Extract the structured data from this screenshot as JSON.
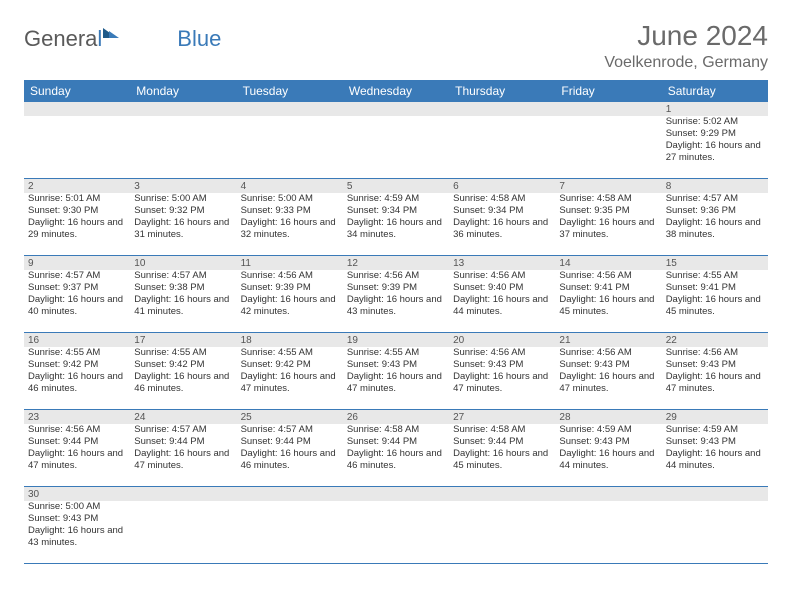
{
  "logo": {
    "text_gray": "Genera",
    "text_blue_l": "l",
    "text_blue_rest": "Blue"
  },
  "header": {
    "title": "June 2024",
    "location": "Voelkenrode, Germany"
  },
  "colors": {
    "header_bg": "#3a7ab8",
    "header_text": "#ffffff",
    "daynum_bg": "#e8e8e8",
    "text": "#333333",
    "title_text": "#6a6a6a",
    "row_border": "#3a7ab8"
  },
  "day_headers": [
    "Sunday",
    "Monday",
    "Tuesday",
    "Wednesday",
    "Thursday",
    "Friday",
    "Saturday"
  ],
  "weeks": [
    {
      "daynums": [
        "",
        "",
        "",
        "",
        "",
        "",
        "1"
      ],
      "cells": [
        null,
        null,
        null,
        null,
        null,
        null,
        {
          "sunrise": "5:02 AM",
          "sunset": "9:29 PM",
          "daylight": "16 hours and 27 minutes."
        }
      ]
    },
    {
      "daynums": [
        "2",
        "3",
        "4",
        "5",
        "6",
        "7",
        "8"
      ],
      "cells": [
        {
          "sunrise": "5:01 AM",
          "sunset": "9:30 PM",
          "daylight": "16 hours and 29 minutes."
        },
        {
          "sunrise": "5:00 AM",
          "sunset": "9:32 PM",
          "daylight": "16 hours and 31 minutes."
        },
        {
          "sunrise": "5:00 AM",
          "sunset": "9:33 PM",
          "daylight": "16 hours and 32 minutes."
        },
        {
          "sunrise": "4:59 AM",
          "sunset": "9:34 PM",
          "daylight": "16 hours and 34 minutes."
        },
        {
          "sunrise": "4:58 AM",
          "sunset": "9:34 PM",
          "daylight": "16 hours and 36 minutes."
        },
        {
          "sunrise": "4:58 AM",
          "sunset": "9:35 PM",
          "daylight": "16 hours and 37 minutes."
        },
        {
          "sunrise": "4:57 AM",
          "sunset": "9:36 PM",
          "daylight": "16 hours and 38 minutes."
        }
      ]
    },
    {
      "daynums": [
        "9",
        "10",
        "11",
        "12",
        "13",
        "14",
        "15"
      ],
      "cells": [
        {
          "sunrise": "4:57 AM",
          "sunset": "9:37 PM",
          "daylight": "16 hours and 40 minutes."
        },
        {
          "sunrise": "4:57 AM",
          "sunset": "9:38 PM",
          "daylight": "16 hours and 41 minutes."
        },
        {
          "sunrise": "4:56 AM",
          "sunset": "9:39 PM",
          "daylight": "16 hours and 42 minutes."
        },
        {
          "sunrise": "4:56 AM",
          "sunset": "9:39 PM",
          "daylight": "16 hours and 43 minutes."
        },
        {
          "sunrise": "4:56 AM",
          "sunset": "9:40 PM",
          "daylight": "16 hours and 44 minutes."
        },
        {
          "sunrise": "4:56 AM",
          "sunset": "9:41 PM",
          "daylight": "16 hours and 45 minutes."
        },
        {
          "sunrise": "4:55 AM",
          "sunset": "9:41 PM",
          "daylight": "16 hours and 45 minutes."
        }
      ]
    },
    {
      "daynums": [
        "16",
        "17",
        "18",
        "19",
        "20",
        "21",
        "22"
      ],
      "cells": [
        {
          "sunrise": "4:55 AM",
          "sunset": "9:42 PM",
          "daylight": "16 hours and 46 minutes."
        },
        {
          "sunrise": "4:55 AM",
          "sunset": "9:42 PM",
          "daylight": "16 hours and 46 minutes."
        },
        {
          "sunrise": "4:55 AM",
          "sunset": "9:42 PM",
          "daylight": "16 hours and 47 minutes."
        },
        {
          "sunrise": "4:55 AM",
          "sunset": "9:43 PM",
          "daylight": "16 hours and 47 minutes."
        },
        {
          "sunrise": "4:56 AM",
          "sunset": "9:43 PM",
          "daylight": "16 hours and 47 minutes."
        },
        {
          "sunrise": "4:56 AM",
          "sunset": "9:43 PM",
          "daylight": "16 hours and 47 minutes."
        },
        {
          "sunrise": "4:56 AM",
          "sunset": "9:43 PM",
          "daylight": "16 hours and 47 minutes."
        }
      ]
    },
    {
      "daynums": [
        "23",
        "24",
        "25",
        "26",
        "27",
        "28",
        "29"
      ],
      "cells": [
        {
          "sunrise": "4:56 AM",
          "sunset": "9:44 PM",
          "daylight": "16 hours and 47 minutes."
        },
        {
          "sunrise": "4:57 AM",
          "sunset": "9:44 PM",
          "daylight": "16 hours and 47 minutes."
        },
        {
          "sunrise": "4:57 AM",
          "sunset": "9:44 PM",
          "daylight": "16 hours and 46 minutes."
        },
        {
          "sunrise": "4:58 AM",
          "sunset": "9:44 PM",
          "daylight": "16 hours and 46 minutes."
        },
        {
          "sunrise": "4:58 AM",
          "sunset": "9:44 PM",
          "daylight": "16 hours and 45 minutes."
        },
        {
          "sunrise": "4:59 AM",
          "sunset": "9:43 PM",
          "daylight": "16 hours and 44 minutes."
        },
        {
          "sunrise": "4:59 AM",
          "sunset": "9:43 PM",
          "daylight": "16 hours and 44 minutes."
        }
      ]
    },
    {
      "daynums": [
        "30",
        "",
        "",
        "",
        "",
        "",
        ""
      ],
      "cells": [
        {
          "sunrise": "5:00 AM",
          "sunset": "9:43 PM",
          "daylight": "16 hours and 43 minutes."
        },
        null,
        null,
        null,
        null,
        null,
        null
      ]
    }
  ],
  "labels": {
    "sunrise_prefix": "Sunrise: ",
    "sunset_prefix": "Sunset: ",
    "daylight_prefix": "Daylight: "
  }
}
